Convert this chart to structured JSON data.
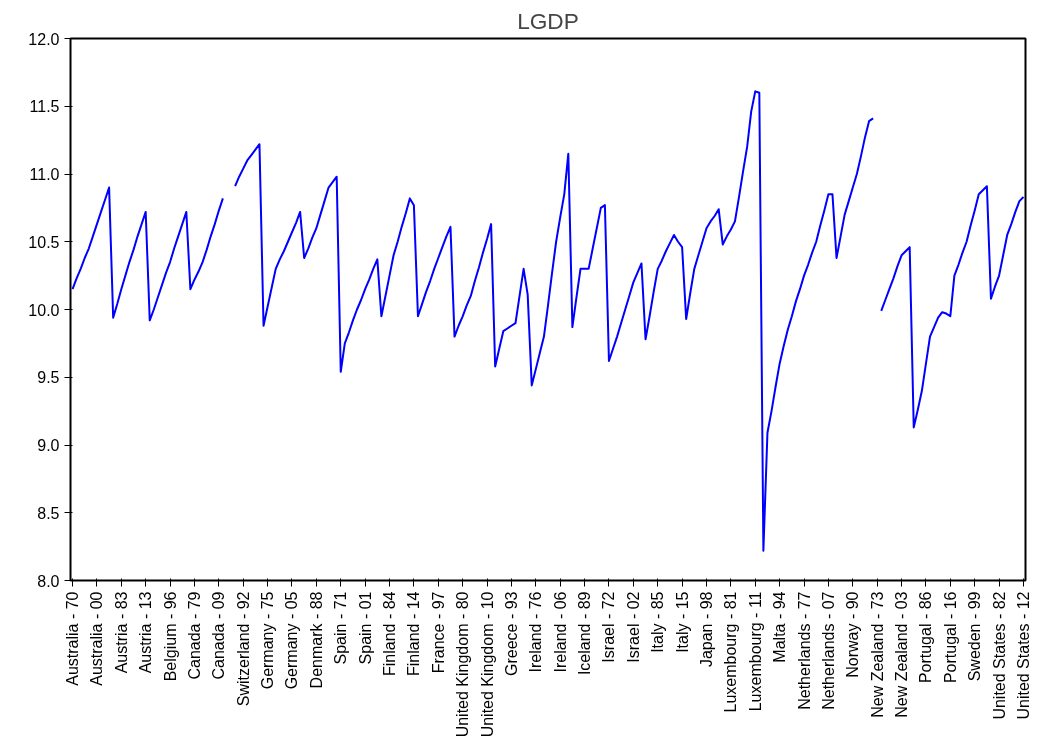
{
  "chart_data": {
    "type": "line",
    "title": "LGDP",
    "categories": [
      "Australia - 70",
      null,
      null,
      null,
      null,
      null,
      "Australia - 00",
      null,
      null,
      null,
      null,
      null,
      "Austria - 83",
      null,
      null,
      null,
      null,
      null,
      "Austria - 13",
      null,
      null,
      null,
      null,
      null,
      "Belgium - 96",
      null,
      null,
      null,
      null,
      null,
      "Canada - 79",
      null,
      null,
      null,
      null,
      null,
      "Canada - 09",
      null,
      null,
      null,
      null,
      null,
      "Switzerland - 92",
      null,
      null,
      null,
      null,
      null,
      "Germany - 75",
      null,
      null,
      null,
      null,
      null,
      "Germany - 05",
      null,
      null,
      null,
      null,
      null,
      "Denmark - 88",
      null,
      null,
      null,
      null,
      null,
      "Spain - 71",
      null,
      null,
      null,
      null,
      null,
      "Spain - 01",
      null,
      null,
      null,
      null,
      null,
      "Finland - 84",
      null,
      null,
      null,
      null,
      null,
      "Finland - 14",
      null,
      null,
      null,
      null,
      null,
      "France - 97",
      null,
      null,
      null,
      null,
      null,
      "United Kingdom - 80",
      null,
      null,
      null,
      null,
      null,
      "United Kingdom - 10",
      null,
      null,
      null,
      null,
      null,
      "Greece - 93",
      null,
      null,
      null,
      null,
      null,
      "Ireland - 76",
      null,
      null,
      null,
      null,
      null,
      "Ireland - 06",
      null,
      null,
      null,
      null,
      null,
      "Iceland - 89",
      null,
      null,
      null,
      null,
      null,
      "Israel - 72",
      null,
      null,
      null,
      null,
      null,
      "Israel - 02",
      null,
      null,
      null,
      null,
      null,
      "Italy - 85",
      null,
      null,
      null,
      null,
      null,
      "Italy - 15",
      null,
      null,
      null,
      null,
      null,
      "Japan - 98",
      null,
      null,
      null,
      null,
      null,
      "Luxembourg - 81",
      null,
      null,
      null,
      null,
      null,
      "Luxembourg - 11",
      null,
      null,
      null,
      null,
      null,
      "Malta - 94",
      null,
      null,
      null,
      null,
      null,
      "Netherlands - 77",
      null,
      null,
      null,
      null,
      null,
      "Netherlands - 07",
      null,
      null,
      null,
      null,
      null,
      "Norway - 90",
      null,
      null,
      null,
      null,
      null,
      "New Zealand - 73",
      null,
      null,
      null,
      null,
      null,
      "New Zealand - 03",
      null,
      null,
      null,
      null,
      null,
      "Portugal - 86",
      null,
      null,
      null,
      null,
      null,
      "Portugal - 16",
      null,
      null,
      null,
      null,
      null,
      "Sweden - 99",
      null,
      null,
      null,
      null,
      null,
      "United States - 82",
      null,
      null,
      null,
      null,
      null,
      "United States - 12"
    ],
    "series": [
      {
        "color": "#0000ff",
        "values": [
          10.15,
          10.23,
          10.3,
          10.38,
          10.45,
          10.54,
          10.63,
          10.72,
          10.81,
          10.9,
          9.94,
          10.04,
          10.15,
          10.25,
          10.35,
          10.44,
          10.54,
          10.63,
          10.72,
          9.92,
          10.0,
          10.09,
          10.18,
          10.27,
          10.35,
          10.45,
          10.54,
          10.63,
          10.72,
          10.15,
          10.22,
          10.28,
          10.35,
          10.44,
          10.54,
          10.63,
          10.73,
          10.82,
          null,
          null,
          10.91,
          10.98,
          11.04,
          11.1,
          11.14,
          11.18,
          11.22,
          9.88,
          10.02,
          10.16,
          10.3,
          10.37,
          10.43,
          10.5,
          10.57,
          10.64,
          10.72,
          10.38,
          10.45,
          10.53,
          10.6,
          10.7,
          10.8,
          10.9,
          10.94,
          10.98,
          9.54,
          9.75,
          9.83,
          9.92,
          10.0,
          10.07,
          10.15,
          10.22,
          10.3,
          10.37,
          9.95,
          10.1,
          10.25,
          10.4,
          10.5,
          10.61,
          10.71,
          10.82,
          10.77,
          9.95,
          10.04,
          10.13,
          10.21,
          10.3,
          10.38,
          10.46,
          10.54,
          10.61,
          9.8,
          9.88,
          9.95,
          10.03,
          10.1,
          10.21,
          10.31,
          10.42,
          10.52,
          10.63,
          9.58,
          9.71,
          9.84,
          9.86,
          9.88,
          9.9,
          10.1,
          10.3,
          10.11,
          9.44,
          9.56,
          9.68,
          9.8,
          10.03,
          10.27,
          10.5,
          10.68,
          10.85,
          11.15,
          9.87,
          10.09,
          10.3,
          10.3,
          10.3,
          10.45,
          10.6,
          10.75,
          10.77,
          9.62,
          9.71,
          9.8,
          9.9,
          10.0,
          10.1,
          10.2,
          10.27,
          10.34,
          9.78,
          9.95,
          10.13,
          10.3,
          10.36,
          10.43,
          10.49,
          10.55,
          10.5,
          10.46,
          9.93,
          10.12,
          10.3,
          10.4,
          10.5,
          10.6,
          10.65,
          10.69,
          10.74,
          10.48,
          10.54,
          10.59,
          10.65,
          10.83,
          11.02,
          11.2,
          11.46,
          11.61,
          11.6,
          8.22,
          9.09,
          9.25,
          9.43,
          9.6,
          9.73,
          9.85,
          9.95,
          10.06,
          10.15,
          10.25,
          10.33,
          10.42,
          10.5,
          10.62,
          10.73,
          10.85,
          10.85,
          10.38,
          10.54,
          10.7,
          10.8,
          10.9,
          11.0,
          11.13,
          11.27,
          11.39,
          11.41,
          null,
          9.99,
          10.07,
          10.15,
          10.23,
          10.32,
          10.4,
          10.43,
          10.46,
          9.13,
          9.26,
          9.4,
          9.6,
          9.8,
          9.87,
          9.94,
          9.98,
          9.97,
          9.95,
          10.25,
          10.33,
          10.42,
          10.5,
          10.62,
          10.73,
          10.85,
          10.88,
          10.91,
          10.08,
          10.17,
          10.25,
          10.4,
          10.55,
          10.63,
          10.72,
          10.8,
          10.83
        ]
      }
    ],
    "ylim": [
      8.0,
      12.0
    ],
    "yticks": [
      {
        "value": 8.0,
        "label": "8.0"
      },
      {
        "value": 8.5,
        "label": "8.5"
      },
      {
        "value": 9.0,
        "label": "9.0"
      },
      {
        "value": 9.5,
        "label": "9.5"
      },
      {
        "value": 10.0,
        "label": "10.0"
      },
      {
        "value": 10.5,
        "label": "10.5"
      },
      {
        "value": 11.0,
        "label": "11.0"
      },
      {
        "value": 11.5,
        "label": "11.5"
      },
      {
        "value": 12.0,
        "label": "12.0"
      }
    ],
    "grid": false,
    "line_style": "solid"
  }
}
